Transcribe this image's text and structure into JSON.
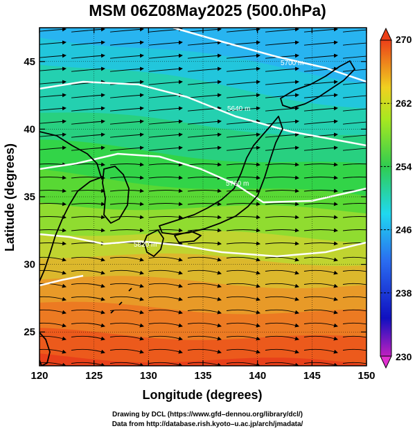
{
  "title": "MSM 06Z08May2025 (500.0hPa)",
  "axes": {
    "xlabel": "Longitude (degrees)",
    "ylabel": "Latitude  (degrees)",
    "xticks": [
      "120",
      "125",
      "130",
      "135",
      "140",
      "145",
      "150"
    ],
    "yticks": [
      "45",
      "40",
      "35",
      "30",
      "25"
    ]
  },
  "colorbar": {
    "labels": [
      "270",
      "262",
      "254",
      "246",
      "238",
      "230"
    ],
    "min": 230,
    "max": 270
  },
  "contour_labels": [
    "5700 m",
    "5640 m",
    "5760 m",
    "5820 m"
  ],
  "credits": {
    "line1": "Drawing by DCL (https://www.gfd–dennou.org/library/dcl/)",
    "line2": "Data from http://database.rish.kyoto–u.ac.jp/arch/jmadata/"
  },
  "chart_data": {
    "type": "heatmap",
    "title": "MSM 06Z08May2025 (500.0hPa)",
    "xlabel": "Longitude (degrees)",
    "ylabel": "Latitude  (degrees)",
    "xlim": [
      120,
      150
    ],
    "ylim": [
      22.5,
      47.5
    ],
    "color_range": [
      230,
      270
    ],
    "colorbar_ticks": [
      270,
      262,
      254,
      246,
      238,
      230
    ],
    "field": "temperature (K), shaded",
    "overlays": [
      "streamlines of wind",
      "geopotential height contours (white)",
      "coastlines"
    ]
  }
}
